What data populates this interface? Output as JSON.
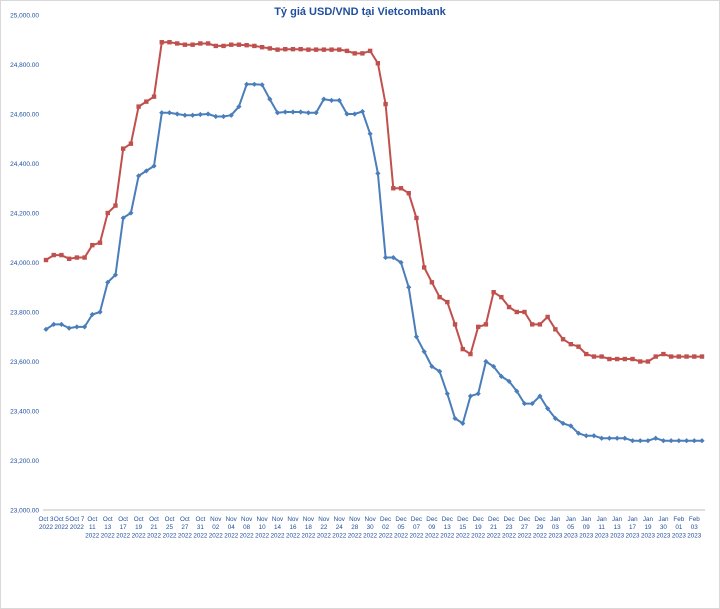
{
  "chart_data": {
    "type": "line",
    "title": "Tỷ giá USD/VND tại Vietcombank",
    "xlabel": "",
    "ylabel": "",
    "ylim": [
      23000,
      25000
    ],
    "yticks": [
      "23,000.00",
      "23,200.00",
      "23,400.00",
      "23,600.00",
      "23,800.00",
      "24,000.00",
      "24,200.00",
      "24,400.00",
      "24,600.00",
      "24,800.00",
      "25,000.00"
    ],
    "xticks": [
      {
        "i": 0,
        "lines": [
          "Oct 3",
          "2022"
        ]
      },
      {
        "i": 2,
        "lines": [
          "Oct 5",
          "2022"
        ]
      },
      {
        "i": 4,
        "lines": [
          "Oct 7",
          "2022"
        ]
      },
      {
        "i": 6,
        "lines": [
          "Oct",
          "11",
          "2022"
        ]
      },
      {
        "i": 8,
        "lines": [
          "Oct",
          "13",
          "2022"
        ]
      },
      {
        "i": 10,
        "lines": [
          "Oct",
          "17",
          "2022"
        ]
      },
      {
        "i": 12,
        "lines": [
          "Oct",
          "19",
          "2022"
        ]
      },
      {
        "i": 14,
        "lines": [
          "Oct",
          "21",
          "2022"
        ]
      },
      {
        "i": 16,
        "lines": [
          "Oct",
          "25",
          "2022"
        ]
      },
      {
        "i": 18,
        "lines": [
          "Oct",
          "27",
          "2022"
        ]
      },
      {
        "i": 20,
        "lines": [
          "Oct",
          "31",
          "2022"
        ]
      },
      {
        "i": 22,
        "lines": [
          "Nov",
          "02",
          "2022"
        ]
      },
      {
        "i": 24,
        "lines": [
          "Nov",
          "04",
          "2022"
        ]
      },
      {
        "i": 26,
        "lines": [
          "Nov",
          "08",
          "2022"
        ]
      },
      {
        "i": 28,
        "lines": [
          "Nov",
          "10",
          "2022"
        ]
      },
      {
        "i": 30,
        "lines": [
          "Nov",
          "14",
          "2022"
        ]
      },
      {
        "i": 32,
        "lines": [
          "Nov",
          "16",
          "2022"
        ]
      },
      {
        "i": 34,
        "lines": [
          "Nov",
          "18",
          "2022"
        ]
      },
      {
        "i": 36,
        "lines": [
          "Nov",
          "22",
          "2022"
        ]
      },
      {
        "i": 38,
        "lines": [
          "Nov",
          "24",
          "2022"
        ]
      },
      {
        "i": 40,
        "lines": [
          "Nov",
          "28",
          "2022"
        ]
      },
      {
        "i": 42,
        "lines": [
          "Nov",
          "30",
          "2022"
        ]
      },
      {
        "i": 44,
        "lines": [
          "Dec",
          "02",
          "2022"
        ]
      },
      {
        "i": 46,
        "lines": [
          "Dec",
          "05",
          "2022"
        ]
      },
      {
        "i": 48,
        "lines": [
          "Dec",
          "07",
          "2022"
        ]
      },
      {
        "i": 50,
        "lines": [
          "Dec",
          "09",
          "2022"
        ]
      },
      {
        "i": 52,
        "lines": [
          "Dec",
          "13",
          "2022"
        ]
      },
      {
        "i": 54,
        "lines": [
          "Dec",
          "15",
          "2022"
        ]
      },
      {
        "i": 56,
        "lines": [
          "Dec",
          "19",
          "2022"
        ]
      },
      {
        "i": 58,
        "lines": [
          "Dec",
          "21",
          "2022"
        ]
      },
      {
        "i": 60,
        "lines": [
          "Dec",
          "23",
          "2022"
        ]
      },
      {
        "i": 62,
        "lines": [
          "Dec",
          "27",
          "2022"
        ]
      },
      {
        "i": 64,
        "lines": [
          "Dec",
          "29",
          "2022"
        ]
      },
      {
        "i": 66,
        "lines": [
          "Jan",
          "03",
          "2023"
        ]
      },
      {
        "i": 68,
        "lines": [
          "Jan",
          "05",
          "2023"
        ]
      },
      {
        "i": 70,
        "lines": [
          "Jan",
          "09",
          "2023"
        ]
      },
      {
        "i": 72,
        "lines": [
          "Jan",
          "11",
          "2023"
        ]
      },
      {
        "i": 74,
        "lines": [
          "Jan",
          "13",
          "2023"
        ]
      },
      {
        "i": 76,
        "lines": [
          "Jan",
          "17",
          "2023"
        ]
      },
      {
        "i": 78,
        "lines": [
          "Jan",
          "19",
          "2023"
        ]
      },
      {
        "i": 80,
        "lines": [
          "Jan",
          "30",
          "2023"
        ]
      },
      {
        "i": 82,
        "lines": [
          "Feb",
          "01",
          "2023"
        ]
      },
      {
        "i": 84,
        "lines": [
          "Feb",
          "03",
          "2023"
        ]
      }
    ],
    "series": [
      {
        "color": "#c0504d",
        "marker": "square",
        "values": [
          24010,
          24030,
          24030,
          24015,
          24020,
          24020,
          24070,
          24080,
          24200,
          24230,
          24460,
          24480,
          24630,
          24650,
          24670,
          24890,
          24890,
          24885,
          24880,
          24880,
          24885,
          24885,
          24875,
          24875,
          24880,
          24880,
          24878,
          24875,
          24870,
          24865,
          24860,
          24862,
          24862,
          24862,
          24860,
          24860,
          24860,
          24860,
          24860,
          24855,
          24845,
          24845,
          24855,
          24805,
          24640,
          24300,
          24300,
          24280,
          24180,
          23980,
          23920,
          23860,
          23840,
          23750,
          23650,
          23630,
          23740,
          23750,
          23880,
          23860,
          23820,
          23800,
          23800,
          23750,
          23750,
          23780,
          23730,
          23690,
          23670,
          23660,
          23630,
          23620,
          23620,
          23610,
          23610,
          23610,
          23610,
          23600,
          23600,
          23620,
          23630,
          23620,
          23620,
          23620,
          23620,
          23620
        ]
      },
      {
        "color": "#4a7ebb",
        "marker": "diamond",
        "values": [
          23730,
          23750,
          23750,
          23735,
          23740,
          23740,
          23790,
          23800,
          23920,
          23950,
          24180,
          24200,
          24350,
          24370,
          24390,
          24605,
          24605,
          24600,
          24595,
          24595,
          24598,
          24600,
          24590,
          24590,
          24595,
          24630,
          24720,
          24720,
          24718,
          24660,
          24605,
          24608,
          24608,
          24608,
          24605,
          24605,
          24660,
          24655,
          24655,
          24600,
          24600,
          24610,
          24520,
          24360,
          24020,
          24020,
          24000,
          23900,
          23700,
          23640,
          23580,
          23560,
          23470,
          23370,
          23350,
          23460,
          23470,
          23600,
          23580,
          23540,
          23520,
          23480,
          23430,
          23430,
          23460,
          23410,
          23370,
          23350,
          23340,
          23310,
          23300,
          23300,
          23290,
          23290,
          23290,
          23290,
          23280,
          23280,
          23280,
          23290,
          23280,
          23280,
          23280,
          23280,
          23280,
          23280
        ]
      }
    ]
  }
}
